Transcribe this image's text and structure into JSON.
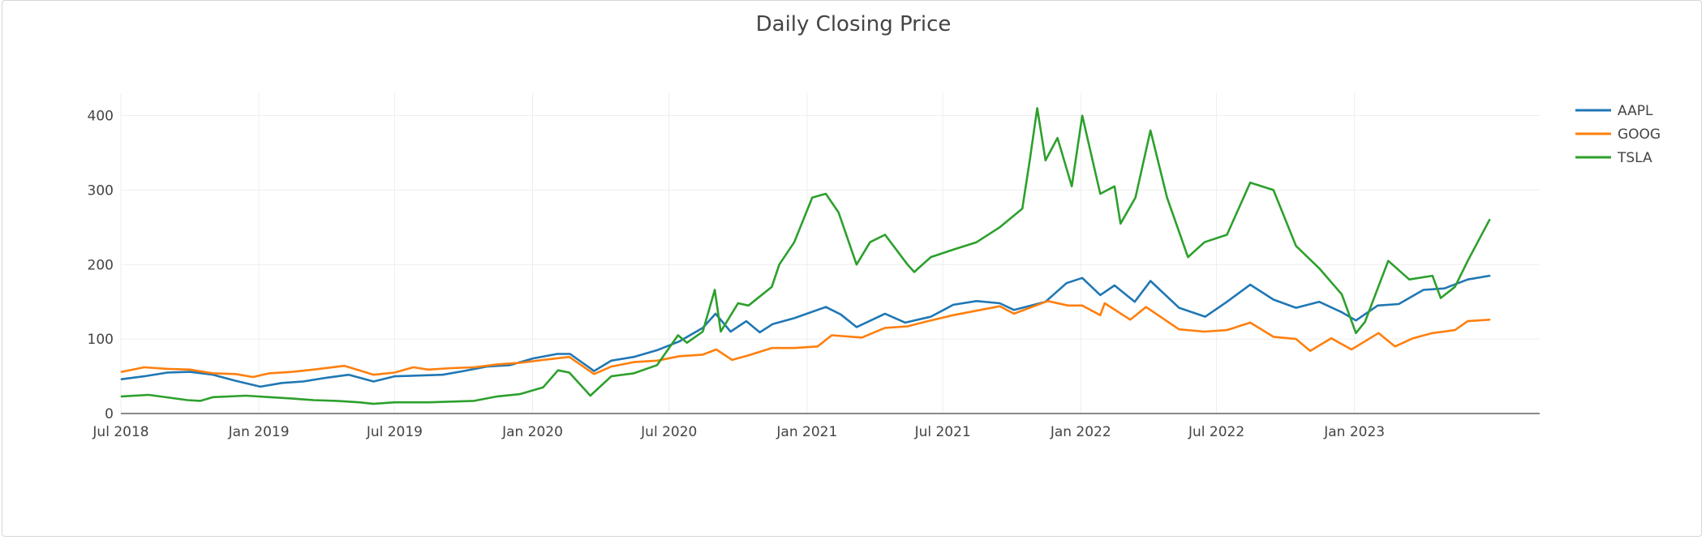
{
  "chart_data": {
    "type": "line",
    "title": "Daily Closing Price",
    "xlabel": "",
    "ylabel": "",
    "xlim": [
      "2018-07-01",
      "2023-09-05"
    ],
    "ylim": [
      0,
      430
    ],
    "x_ticks": [
      "2018-07-01",
      "2019-01-01",
      "2019-07-01",
      "2020-01-01",
      "2020-07-01",
      "2021-01-01",
      "2021-07-01",
      "2022-01-01",
      "2022-07-01",
      "2023-01-01"
    ],
    "x_tick_labels": [
      "Jul 2018",
      "Jan 2019",
      "Jul 2019",
      "Jan 2020",
      "Jul 2020",
      "Jan 2021",
      "Jul 2021",
      "Jan 2022",
      "Jul 2022",
      "Jan 2023"
    ],
    "y_ticks": [
      0,
      100,
      200,
      300,
      400
    ],
    "y_tick_labels": [
      "0",
      "100",
      "200",
      "300",
      "400"
    ],
    "grid": true,
    "legend_position": "top-right",
    "series": [
      {
        "name": "AAPL",
        "color": "#1f77b4",
        "points": [
          [
            "2018-07-02",
            46
          ],
          [
            "2018-08-01",
            50
          ],
          [
            "2018-09-01",
            55
          ],
          [
            "2018-10-01",
            56
          ],
          [
            "2018-11-01",
            52
          ],
          [
            "2018-12-01",
            44
          ],
          [
            "2019-01-03",
            36
          ],
          [
            "2019-02-01",
            41
          ],
          [
            "2019-03-01",
            43
          ],
          [
            "2019-04-01",
            48
          ],
          [
            "2019-05-01",
            52
          ],
          [
            "2019-06-03",
            43
          ],
          [
            "2019-07-01",
            50
          ],
          [
            "2019-08-01",
            51
          ],
          [
            "2019-09-03",
            52
          ],
          [
            "2019-10-01",
            57
          ],
          [
            "2019-11-01",
            63
          ],
          [
            "2019-12-02",
            65
          ],
          [
            "2020-01-02",
            74
          ],
          [
            "2020-02-03",
            80
          ],
          [
            "2020-02-20",
            80
          ],
          [
            "2020-03-23",
            57
          ],
          [
            "2020-04-15",
            71
          ],
          [
            "2020-05-15",
            76
          ],
          [
            "2020-06-15",
            85
          ],
          [
            "2020-07-15",
            97
          ],
          [
            "2020-08-15",
            115
          ],
          [
            "2020-09-01",
            134
          ],
          [
            "2020-09-21",
            110
          ],
          [
            "2020-10-12",
            124
          ],
          [
            "2020-10-30",
            109
          ],
          [
            "2020-11-16",
            120
          ],
          [
            "2020-12-15",
            128
          ],
          [
            "2021-01-26",
            143
          ],
          [
            "2021-02-15",
            133
          ],
          [
            "2021-03-08",
            116
          ],
          [
            "2021-04-15",
            134
          ],
          [
            "2021-05-12",
            122
          ],
          [
            "2021-06-15",
            130
          ],
          [
            "2021-07-15",
            146
          ],
          [
            "2021-08-15",
            151
          ],
          [
            "2021-09-15",
            148
          ],
          [
            "2021-10-04",
            139
          ],
          [
            "2021-11-15",
            150
          ],
          [
            "2021-12-13",
            175
          ],
          [
            "2022-01-03",
            182
          ],
          [
            "2022-01-27",
            159
          ],
          [
            "2022-02-15",
            172
          ],
          [
            "2022-03-14",
            150
          ],
          [
            "2022-04-04",
            178
          ],
          [
            "2022-05-12",
            142
          ],
          [
            "2022-06-16",
            130
          ],
          [
            "2022-07-15",
            150
          ],
          [
            "2022-08-15",
            173
          ],
          [
            "2022-09-15",
            153
          ],
          [
            "2022-10-15",
            142
          ],
          [
            "2022-11-15",
            150
          ],
          [
            "2022-12-15",
            136
          ],
          [
            "2023-01-03",
            125
          ],
          [
            "2023-02-01",
            145
          ],
          [
            "2023-03-01",
            147
          ],
          [
            "2023-04-03",
            166
          ],
          [
            "2023-05-01",
            168
          ],
          [
            "2023-06-01",
            180
          ],
          [
            "2023-06-30",
            185
          ]
        ]
      },
      {
        "name": "GOOG",
        "color": "#ff7f0e",
        "points": [
          [
            "2018-07-02",
            56
          ],
          [
            "2018-08-01",
            62
          ],
          [
            "2018-09-01",
            60
          ],
          [
            "2018-10-01",
            59
          ],
          [
            "2018-11-01",
            54
          ],
          [
            "2018-12-01",
            53
          ],
          [
            "2018-12-24",
            49
          ],
          [
            "2019-01-15",
            54
          ],
          [
            "2019-02-15",
            56
          ],
          [
            "2019-03-15",
            59
          ],
          [
            "2019-04-25",
            64
          ],
          [
            "2019-05-15",
            58
          ],
          [
            "2019-06-03",
            52
          ],
          [
            "2019-07-01",
            55
          ],
          [
            "2019-07-26",
            62
          ],
          [
            "2019-08-15",
            59
          ],
          [
            "2019-09-15",
            61
          ],
          [
            "2019-10-15",
            62
          ],
          [
            "2019-11-15",
            66
          ],
          [
            "2019-12-15",
            68
          ],
          [
            "2020-01-15",
            72
          ],
          [
            "2020-02-19",
            76
          ],
          [
            "2020-03-23",
            53
          ],
          [
            "2020-04-15",
            63
          ],
          [
            "2020-05-15",
            69
          ],
          [
            "2020-06-15",
            71
          ],
          [
            "2020-07-15",
            77
          ],
          [
            "2020-08-15",
            79
          ],
          [
            "2020-09-02",
            86
          ],
          [
            "2020-09-23",
            72
          ],
          [
            "2020-10-15",
            78
          ],
          [
            "2020-11-15",
            88
          ],
          [
            "2020-12-15",
            88
          ],
          [
            "2021-01-15",
            90
          ],
          [
            "2021-02-03",
            105
          ],
          [
            "2021-03-15",
            102
          ],
          [
            "2021-04-15",
            115
          ],
          [
            "2021-05-15",
            117
          ],
          [
            "2021-06-15",
            125
          ],
          [
            "2021-07-15",
            132
          ],
          [
            "2021-08-15",
            138
          ],
          [
            "2021-09-15",
            144
          ],
          [
            "2021-10-04",
            134
          ],
          [
            "2021-11-18",
            151
          ],
          [
            "2021-12-15",
            145
          ],
          [
            "2022-01-03",
            145
          ],
          [
            "2022-01-27",
            132
          ],
          [
            "2022-02-02",
            148
          ],
          [
            "2022-03-08",
            126
          ],
          [
            "2022-03-29",
            143
          ],
          [
            "2022-05-12",
            113
          ],
          [
            "2022-06-15",
            110
          ],
          [
            "2022-07-15",
            112
          ],
          [
            "2022-08-15",
            122
          ],
          [
            "2022-09-15",
            103
          ],
          [
            "2022-10-15",
            100
          ],
          [
            "2022-11-03",
            84
          ],
          [
            "2022-12-01",
            101
          ],
          [
            "2022-12-28",
            86
          ],
          [
            "2023-02-02",
            108
          ],
          [
            "2023-02-24",
            90
          ],
          [
            "2023-03-20",
            101
          ],
          [
            "2023-04-15",
            108
          ],
          [
            "2023-05-15",
            112
          ],
          [
            "2023-06-01",
            124
          ],
          [
            "2023-06-30",
            126
          ]
        ]
      },
      {
        "name": "TSLA",
        "color": "#2ca02c",
        "points": [
          [
            "2018-07-02",
            23
          ],
          [
            "2018-08-07",
            25
          ],
          [
            "2018-09-28",
            18
          ],
          [
            "2018-10-15",
            17
          ],
          [
            "2018-11-01",
            22
          ],
          [
            "2018-12-15",
            24
          ],
          [
            "2019-01-15",
            22
          ],
          [
            "2019-02-15",
            20
          ],
          [
            "2019-03-15",
            18
          ],
          [
            "2019-04-15",
            17
          ],
          [
            "2019-05-15",
            15
          ],
          [
            "2019-06-03",
            13
          ],
          [
            "2019-07-01",
            15
          ],
          [
            "2019-08-15",
            15
          ],
          [
            "2019-09-15",
            16
          ],
          [
            "2019-10-15",
            17
          ],
          [
            "2019-11-15",
            23
          ],
          [
            "2019-12-15",
            26
          ],
          [
            "2020-01-15",
            35
          ],
          [
            "2020-02-04",
            58
          ],
          [
            "2020-02-19",
            55
          ],
          [
            "2020-03-18",
            24
          ],
          [
            "2020-04-15",
            50
          ],
          [
            "2020-05-15",
            54
          ],
          [
            "2020-06-15",
            65
          ],
          [
            "2020-07-13",
            105
          ],
          [
            "2020-07-25",
            95
          ],
          [
            "2020-08-15",
            110
          ],
          [
            "2020-08-31",
            166
          ],
          [
            "2020-09-08",
            110
          ],
          [
            "2020-10-01",
            148
          ],
          [
            "2020-10-15",
            145
          ],
          [
            "2020-11-15",
            170
          ],
          [
            "2020-11-25",
            200
          ],
          [
            "2020-12-15",
            230
          ],
          [
            "2021-01-08",
            290
          ],
          [
            "2021-01-26",
            295
          ],
          [
            "2021-02-12",
            270
          ],
          [
            "2021-03-08",
            200
          ],
          [
            "2021-03-26",
            230
          ],
          [
            "2021-04-15",
            240
          ],
          [
            "2021-05-15",
            200
          ],
          [
            "2021-05-24",
            190
          ],
          [
            "2021-06-15",
            210
          ],
          [
            "2021-07-15",
            220
          ],
          [
            "2021-08-15",
            230
          ],
          [
            "2021-09-15",
            250
          ],
          [
            "2021-10-15",
            275
          ],
          [
            "2021-10-25",
            340
          ],
          [
            "2021-11-04",
            410
          ],
          [
            "2021-11-15",
            340
          ],
          [
            "2021-12-01",
            370
          ],
          [
            "2021-12-20",
            305
          ],
          [
            "2022-01-03",
            400
          ],
          [
            "2022-01-27",
            295
          ],
          [
            "2022-02-15",
            305
          ],
          [
            "2022-02-23",
            255
          ],
          [
            "2022-03-15",
            290
          ],
          [
            "2022-04-04",
            380
          ],
          [
            "2022-04-26",
            290
          ],
          [
            "2022-05-24",
            210
          ],
          [
            "2022-06-15",
            230
          ],
          [
            "2022-07-15",
            240
          ],
          [
            "2022-08-15",
            310
          ],
          [
            "2022-09-15",
            300
          ],
          [
            "2022-10-15",
            225
          ],
          [
            "2022-11-15",
            195
          ],
          [
            "2022-12-15",
            160
          ],
          [
            "2023-01-03",
            108
          ],
          [
            "2023-01-15",
            123
          ],
          [
            "2023-02-15",
            205
          ],
          [
            "2023-03-15",
            180
          ],
          [
            "2023-04-15",
            185
          ],
          [
            "2023-04-26",
            155
          ],
          [
            "2023-05-15",
            170
          ],
          [
            "2023-06-01",
            205
          ],
          [
            "2023-06-30",
            260
          ]
        ]
      }
    ]
  }
}
